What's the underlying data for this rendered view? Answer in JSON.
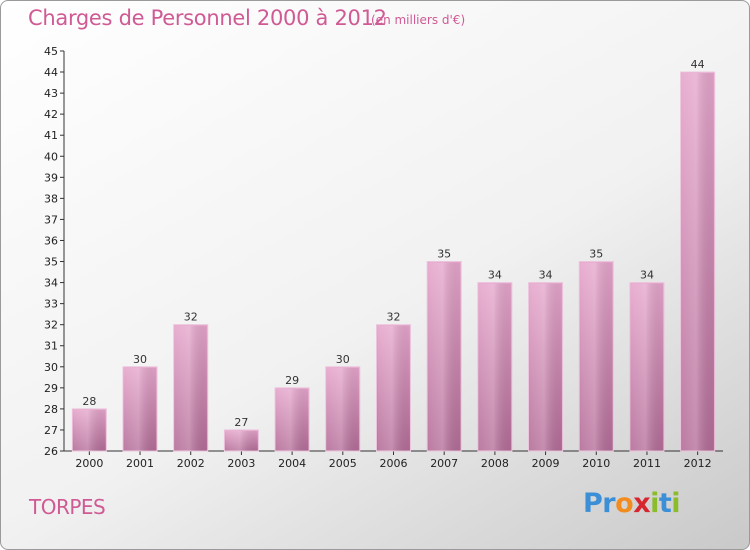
{
  "title": "Charges de Personnel 2000 à 2012",
  "subtitle": "(en milliers d'€)",
  "commune": "TORPES",
  "logo": {
    "letters": [
      "P",
      "r",
      "o",
      "x",
      "i",
      "t",
      "i"
    ],
    "colors": [
      "#3a8fd6",
      "#3a8fd6",
      "#f28c1e",
      "#d8262e",
      "#8bbd2a",
      "#3a8fd6",
      "#8bbd2a"
    ]
  },
  "colors": {
    "bar_top": "#e6a6cc",
    "bar_bottom": "#b46d98",
    "accent": "#cf5a94"
  },
  "chart_data": {
    "type": "bar",
    "categories": [
      "2000",
      "2001",
      "2002",
      "2003",
      "2004",
      "2005",
      "2006",
      "2007",
      "2008",
      "2009",
      "2010",
      "2011",
      "2012"
    ],
    "values": [
      28,
      30,
      32,
      27,
      29,
      30,
      32,
      35,
      34,
      34,
      35,
      34,
      44
    ],
    "data_labels": [
      "28",
      "30",
      "32",
      "27",
      "29",
      "30",
      "32",
      "35",
      "34",
      "34",
      "35",
      "34",
      "44"
    ],
    "ylim": [
      26,
      45
    ],
    "yticks": [
      "26",
      "27",
      "28",
      "29",
      "30",
      "31",
      "32",
      "33",
      "34",
      "35",
      "36",
      "37",
      "38",
      "39",
      "40",
      "41",
      "42",
      "43",
      "44",
      "45"
    ],
    "title": "Charges de Personnel 2000 à 2012",
    "xlabel": "",
    "ylabel": "",
    "grid": false,
    "legend": "none"
  }
}
